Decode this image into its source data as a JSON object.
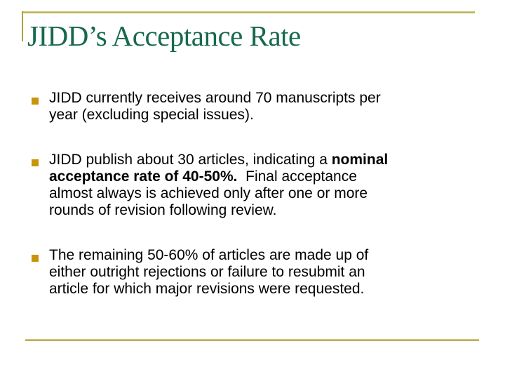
{
  "slide": {
    "title": "JIDD’s Acceptance Rate",
    "colors": {
      "accent_gold": "#b1a23c",
      "bullet_gold": "#c8940a",
      "title_green": "#17694e",
      "body_text": "#000000",
      "background": "#ffffff"
    },
    "bullets": [
      {
        "lines": [
          [
            {
              "t": "JIDD currently receives around 70 manuscripts per"
            }
          ],
          [
            {
              "t": "year (excluding special issues)."
            }
          ]
        ]
      },
      {
        "lines": [
          [
            {
              "t": "JIDD publish about 30 articles, indicating a "
            },
            {
              "t": "nominal",
              "b": true
            }
          ],
          [
            {
              "t": "acceptance rate of 40-50%.",
              "b": true
            },
            {
              "t": "  Final acceptance"
            }
          ],
          [
            {
              "t": "almost always is achieved only after one or more"
            }
          ],
          [
            {
              "t": "rounds of revision following review."
            }
          ]
        ]
      },
      {
        "lines": [
          [
            {
              "t": "The remaining 50-60% of articles are made up of"
            }
          ],
          [
            {
              "t": "either outright rejections or failure to resubmit an"
            }
          ],
          [
            {
              "t": "article for which major revisions were requested."
            }
          ]
        ]
      }
    ]
  }
}
